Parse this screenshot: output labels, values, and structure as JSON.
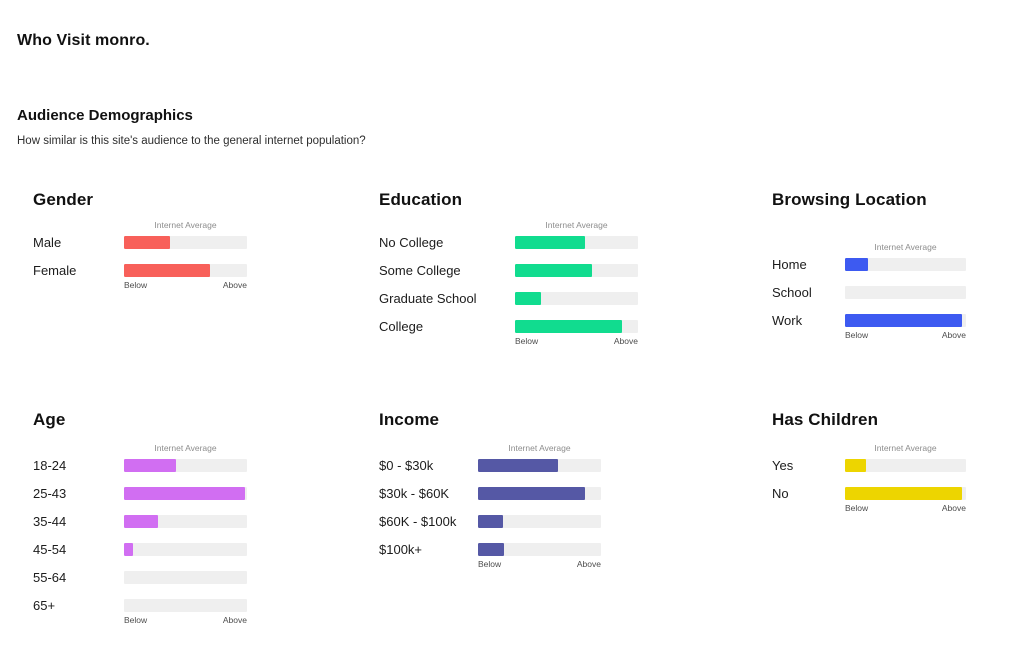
{
  "page": {
    "title": "Who Visit monro.",
    "section_title": "Audience Demographics",
    "section_subtitle": "How similar is this site's audience to the general internet population?"
  },
  "chart_data": [
    {
      "type": "bar",
      "title": "Gender",
      "color": "#f8605a",
      "scale": {
        "center_label": "Internet Average",
        "min_label": "Below",
        "max_label": "Above",
        "range_pct": [
          0,
          100
        ]
      },
      "categories": [
        "Male",
        "Female"
      ],
      "values": [
        37,
        70
      ]
    },
    {
      "type": "bar",
      "title": "Education",
      "color": "#11dc8f",
      "scale": {
        "center_label": "Internet Average",
        "min_label": "Below",
        "max_label": "Above",
        "range_pct": [
          0,
          100
        ]
      },
      "categories": [
        "No College",
        "Some College",
        "Graduate School",
        "College"
      ],
      "values": [
        57,
        63,
        21,
        87
      ]
    },
    {
      "type": "bar",
      "title": "Browsing Location",
      "color": "#3d5af1",
      "scale": {
        "center_label": "Internet Average",
        "min_label": "Below",
        "max_label": "Above",
        "range_pct": [
          0,
          100
        ]
      },
      "categories": [
        "Home",
        "School",
        "Work"
      ],
      "values": [
        19,
        0,
        97
      ]
    },
    {
      "type": "bar",
      "title": "Age",
      "color": "#d16ef2",
      "scale": {
        "center_label": "Internet Average",
        "min_label": "Below",
        "max_label": "Above",
        "range_pct": [
          0,
          100
        ]
      },
      "categories": [
        "18-24",
        "25-43",
        "35-44",
        "45-54",
        "55-64",
        "65+"
      ],
      "values": [
        42,
        98,
        28,
        7,
        0,
        0
      ]
    },
    {
      "type": "bar",
      "title": "Income",
      "color": "#5558a5",
      "scale": {
        "center_label": "Internet Average",
        "min_label": "Below",
        "max_label": "Above",
        "range_pct": [
          0,
          100
        ]
      },
      "categories": [
        "$0 - $30k",
        "$30k - $60K",
        "$60K - $100k",
        "$100k+"
      ],
      "values": [
        65,
        87,
        20,
        21
      ]
    },
    {
      "type": "bar",
      "title": "Has Children",
      "color": "#edd500",
      "scale": {
        "center_label": "Internet Average",
        "min_label": "Below",
        "max_label": "Above",
        "range_pct": [
          0,
          100
        ]
      },
      "categories": [
        "Yes",
        "No"
      ],
      "values": [
        17,
        97
      ]
    }
  ]
}
